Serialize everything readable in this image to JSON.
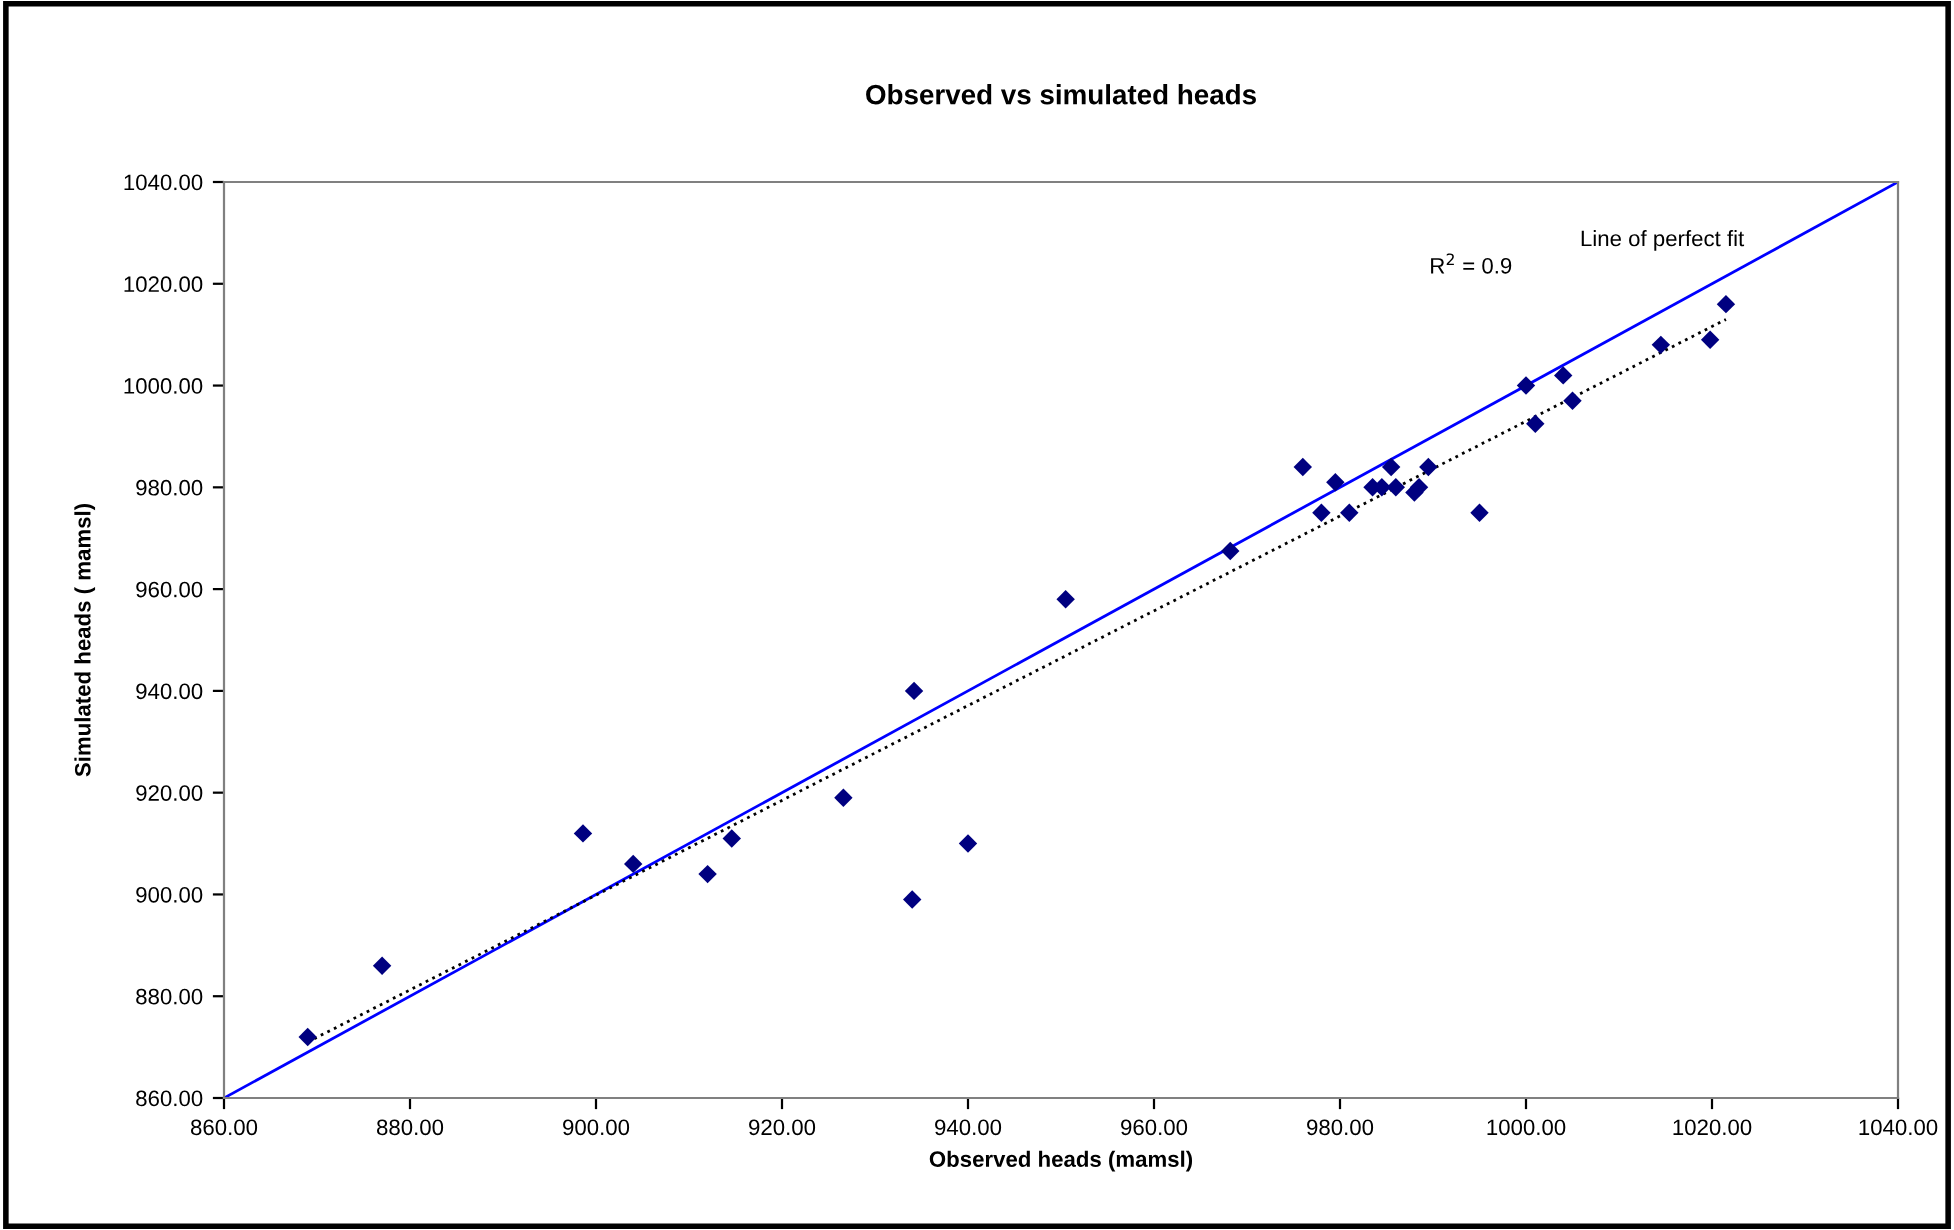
{
  "chart_data": {
    "type": "scatter",
    "title": "Observed vs simulated heads",
    "xlabel": "Observed heads (mamsl)",
    "ylabel": "Simulated heads ( mamsl)",
    "xlim": [
      860,
      1040
    ],
    "ylim": [
      860,
      1040
    ],
    "xticks": [
      {
        "value": 860,
        "label": "860.00"
      },
      {
        "value": 880,
        "label": "880.00"
      },
      {
        "value": 900,
        "label": "900.00"
      },
      {
        "value": 920,
        "label": "920.00"
      },
      {
        "value": 940,
        "label": "940.00"
      },
      {
        "value": 960,
        "label": "960.00"
      },
      {
        "value": 980,
        "label": "980.00"
      },
      {
        "value": 1000,
        "label": "1000.00"
      },
      {
        "value": 1020,
        "label": "1020.00"
      },
      {
        "value": 1040,
        "label": "1040.00"
      }
    ],
    "yticks": [
      {
        "value": 860,
        "label": "860.00"
      },
      {
        "value": 880,
        "label": "880.00"
      },
      {
        "value": 900,
        "label": "900.00"
      },
      {
        "value": 920,
        "label": "920.00"
      },
      {
        "value": 940,
        "label": "940.00"
      },
      {
        "value": 960,
        "label": "960.00"
      },
      {
        "value": 980,
        "label": "980.00"
      },
      {
        "value": 1000,
        "label": "1000.00"
      },
      {
        "value": 1020,
        "label": "1020.00"
      },
      {
        "value": 1040,
        "label": "1040.00"
      }
    ],
    "grid": false,
    "legend": false,
    "annotations": [
      "R$^{2}$ = 0.9",
      "Line of perfect fit"
    ],
    "series": [
      {
        "color": "#000080",
        "marker": "diamond",
        "x": [
          869,
          877,
          898.6,
          904,
          912,
          914.6,
          926.6,
          934.2,
          934,
          940,
          950.5,
          968.2,
          976,
          978,
          979.5,
          981,
          983.5,
          984.5,
          985.5,
          986,
          988,
          988.5,
          989.5,
          995,
          1000,
          1001,
          1004,
          1005,
          1014.5,
          1019.8,
          1021.5
        ],
        "values": [
          872,
          886,
          912,
          906,
          904,
          911,
          919,
          940,
          899,
          910,
          958,
          967.5,
          984,
          975,
          981,
          975,
          980,
          980,
          984,
          980,
          979,
          980,
          984,
          975,
          1000,
          992.5,
          1002,
          997,
          1008,
          1009,
          1016
        ]
      },
      {
        "type": "line",
        "color": "#0000ff",
        "line_style": "solid",
        "x": [
          860,
          1040
        ],
        "values": [
          860,
          1040
        ]
      },
      {
        "type": "line",
        "color": "#000000",
        "line_style": "dotted",
        "x": [
          869,
          1021.5
        ],
        "values": [
          871,
          1013
        ]
      }
    ]
  }
}
